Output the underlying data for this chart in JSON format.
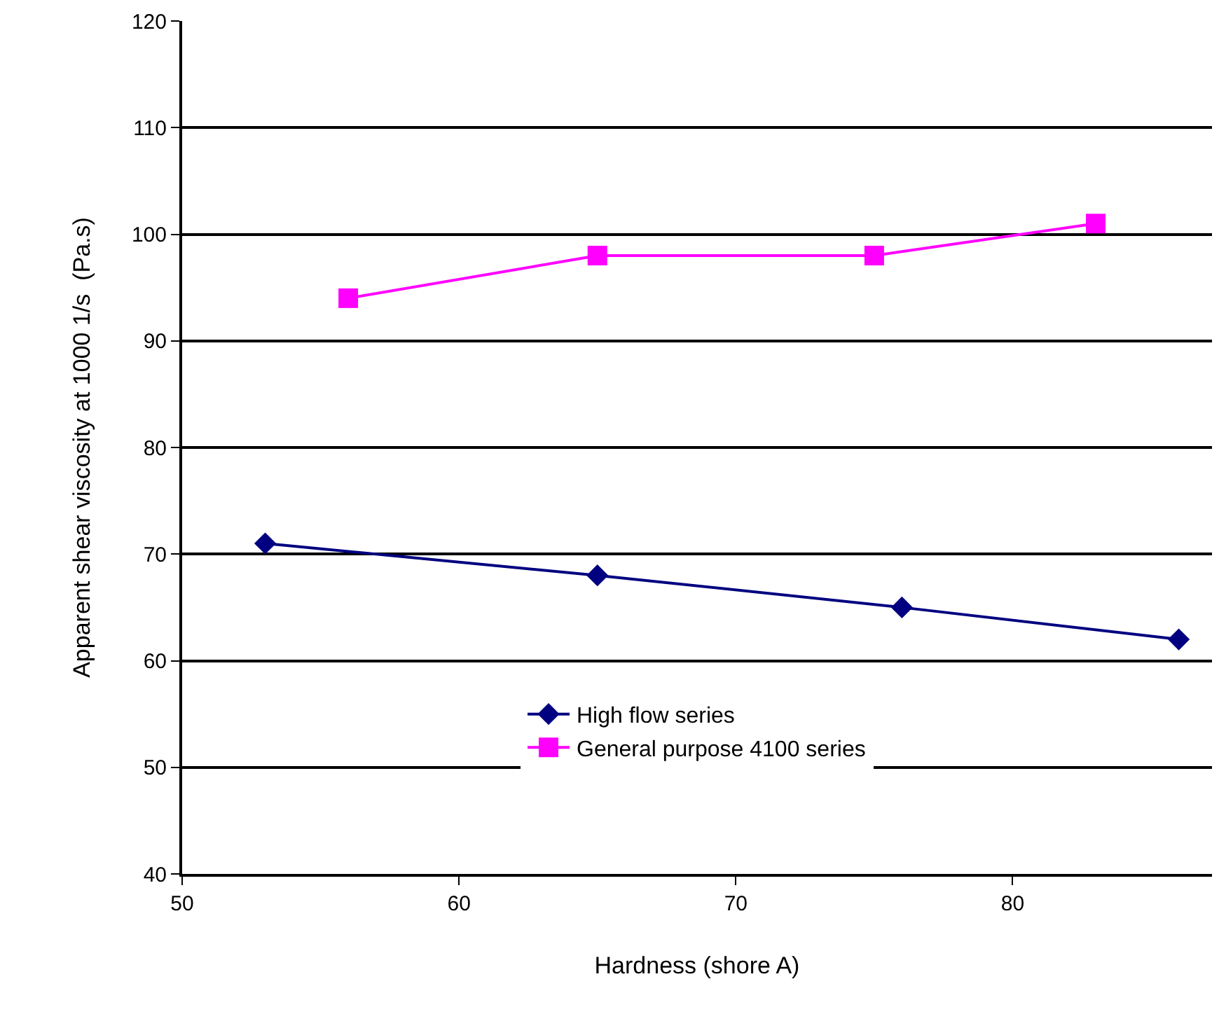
{
  "chart_data": {
    "type": "line",
    "xlabel": "Hardness (shore A)",
    "ylabel": "Apparent shear viscosity at 1000 1/s  (Pa.s)",
    "xlim": [
      50,
      87.2
    ],
    "xticks": [
      50,
      60,
      70,
      80
    ],
    "ylim": [
      40,
      120
    ],
    "yticks": [
      40,
      50,
      60,
      70,
      80,
      90,
      100,
      110,
      120
    ],
    "grid": "y",
    "legend": "bottom",
    "line_style": "solid",
    "series": [
      {
        "name": "High flow series",
        "color": "#000080",
        "marker": "diamond",
        "x": [
          53,
          65,
          76,
          86
        ],
        "values": [
          71,
          68,
          65,
          62
        ]
      },
      {
        "name": "General purpose 4100 series",
        "color": "#ff00ff",
        "marker": "square",
        "x": [
          56,
          65,
          75,
          83
        ],
        "values": [
          94,
          98,
          98,
          101
        ]
      }
    ]
  }
}
